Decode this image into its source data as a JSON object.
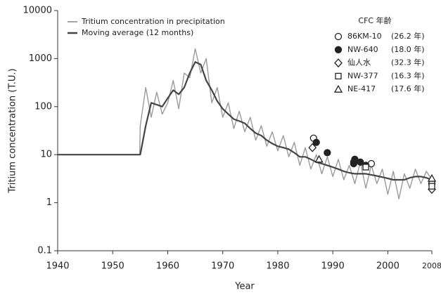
{
  "chart_data": {
    "type": "line",
    "xlabel": "Year",
    "ylabel": "Tritium concentration (T.U.)",
    "log_y": true,
    "xlim": [
      1940,
      2008
    ],
    "xticks": [
      1940,
      1950,
      1960,
      1970,
      1980,
      1990,
      2000,
      2008
    ],
    "ylim": [
      0.1,
      10000
    ],
    "yticks": [
      0.1,
      1,
      10,
      100,
      1000,
      10000
    ],
    "series": [
      {
        "name": "Tritium concentration in precipitation",
        "color": "#9a9a9a",
        "x": [
          1940,
          1954.9,
          1955,
          1956,
          1957,
          1958,
          1959,
          1960,
          1961,
          1962,
          1963,
          1964,
          1965,
          1966,
          1967,
          1968,
          1969,
          1970,
          1971,
          1972,
          1973,
          1974,
          1975,
          1976,
          1977,
          1978,
          1979,
          1980,
          1981,
          1982,
          1983,
          1984,
          1985,
          1986,
          1987,
          1988,
          1989,
          1990,
          1991,
          1992,
          1993,
          1994,
          1995,
          1996,
          1997,
          1998,
          1999,
          2000,
          2001,
          2002,
          2003,
          2004,
          2005,
          2006,
          2007,
          2008
        ],
        "values": [
          10,
          10,
          40,
          250,
          60,
          200,
          70,
          120,
          350,
          90,
          500,
          400,
          1600,
          500,
          1000,
          120,
          250,
          60,
          120,
          35,
          80,
          30,
          60,
          20,
          40,
          15,
          30,
          12,
          25,
          9,
          18,
          6,
          14,
          5,
          10,
          4,
          9,
          3.5,
          8,
          3,
          6,
          2.5,
          7,
          2,
          6,
          2.5,
          5,
          1.5,
          4.5,
          1.2,
          4,
          2,
          5,
          2.5,
          4.5,
          3
        ]
      },
      {
        "name": "Moving average (12 months)",
        "color": "#444444",
        "x": [
          1940,
          1954.9,
          1955,
          1956,
          1957,
          1958,
          1959,
          1960,
          1961,
          1962,
          1963,
          1964,
          1965,
          1966,
          1967,
          1968,
          1969,
          1970,
          1971,
          1972,
          1973,
          1974,
          1975,
          1976,
          1977,
          1978,
          1979,
          1980,
          1981,
          1982,
          1983,
          1984,
          1985,
          1986,
          1987,
          1988,
          1989,
          1990,
          1991,
          1992,
          1993,
          1994,
          1995,
          1996,
          1997,
          1998,
          1999,
          2000,
          2001,
          2002,
          2003,
          2004,
          2005,
          2006,
          2007,
          2008
        ],
        "values": [
          10,
          10,
          10,
          40,
          120,
          110,
          100,
          150,
          220,
          180,
          250,
          500,
          850,
          750,
          350,
          220,
          130,
          90,
          70,
          55,
          50,
          45,
          35,
          28,
          25,
          20,
          17,
          15,
          14,
          13,
          11,
          9,
          9,
          8,
          7,
          6.5,
          6,
          5.5,
          5,
          4.5,
          4.2,
          4,
          4,
          4,
          3.8,
          3.6,
          3.4,
          3.2,
          3,
          3,
          3,
          3.3,
          3.5,
          3.5,
          3.3,
          3
        ]
      }
    ],
    "legend_title": "CFC 年齢",
    "points": [
      {
        "name": "86KM-10",
        "age": "(26.2 年)",
        "marker": "circle-open",
        "color": "#222222",
        "x": [
          1986.5,
          1993.8,
          1997,
          2008
        ],
        "values": [
          22,
          7,
          6.5,
          2.5
        ]
      },
      {
        "name": "NW-640",
        "age": "(18.0 年)",
        "marker": "circle-filled",
        "color": "#222222",
        "x": [
          1987,
          1989,
          1993.8,
          1994,
          1995,
          1996
        ],
        "values": [
          18,
          11,
          6.5,
          8,
          7,
          6
        ]
      },
      {
        "name": "仙人水",
        "age": "(32.3 年)",
        "marker": "diamond",
        "color": "#222222",
        "x": [
          1986.3,
          2008
        ],
        "values": [
          14,
          1.9
        ]
      },
      {
        "name": "NW-377",
        "age": "(16.3 年)",
        "marker": "square",
        "color": "#222222",
        "x": [
          1996,
          2008
        ],
        "values": [
          5.5,
          2.2
        ]
      },
      {
        "name": "NE-417",
        "age": "(17.6 年)",
        "marker": "triangle",
        "color": "#222222",
        "x": [
          1987.5,
          2008
        ],
        "values": [
          8,
          3.2
        ]
      }
    ]
  }
}
